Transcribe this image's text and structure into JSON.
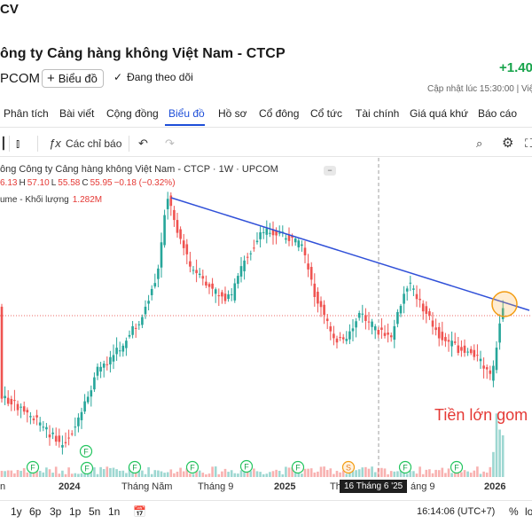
{
  "header": {
    "code_fragment": "CV",
    "company": "ông ty Cảng hàng không Việt Nam - CTCP",
    "exchange": "PCOM",
    "chart_button": "Biểu đồ",
    "follow": "Đang theo dõi",
    "change": "+1.40",
    "updated": "Cập nhật lúc  15:30:00 | Việ"
  },
  "tabs": [
    "Phân tích",
    "Bài viết",
    "Cộng đồng",
    "Biểu đồ",
    "Hồ sơ",
    "Cổ đông",
    "Cổ tức",
    "Tài chính",
    "Giá quá khứ",
    "Báo cáo"
  ],
  "active_tab": "Biểu đồ",
  "toolbar": {
    "indicators": "Các chỉ báo"
  },
  "legend": {
    "title": "ông Công ty Cảng hàng không Việt Nam - CTCP · 1W · UPCOM",
    "o_val": "6.13",
    "h_lbl": "H",
    "h_val": "57.10",
    "l_lbl": "L",
    "l_val": "55.58",
    "c_lbl": "C",
    "c_val": "55.95",
    "chg": "−0.18 (−0.32%)",
    "volume_label": "ume - Khối lượng",
    "volume_value": "1.282M"
  },
  "annotation": "Tiền lớn gom",
  "xaxis": {
    "labels": [
      "n",
      "2024",
      "Tháng Năm",
      "Tháng 9",
      "2025",
      "Th",
      "áng 9",
      "2026"
    ],
    "crosshair": "16 Tháng 6 '25"
  },
  "bottom": {
    "ranges": [
      "1y",
      "6p",
      "3p",
      "1p",
      "5n",
      "1n"
    ],
    "time": "16:14:06 (UTC+7)",
    "percent": "%",
    "log": "lo"
  },
  "colors": {
    "up": "#26a69a",
    "down": "#ef5350",
    "trendline": "#3050d8",
    "accent": "#1d4ed8",
    "positive": "#16a34a"
  },
  "chart_data": {
    "type": "candlestick",
    "interval": "1W",
    "marker_letters": [
      "F",
      "F",
      "F",
      "F",
      "F",
      "F",
      "F",
      "S",
      "F",
      "F"
    ]
  }
}
